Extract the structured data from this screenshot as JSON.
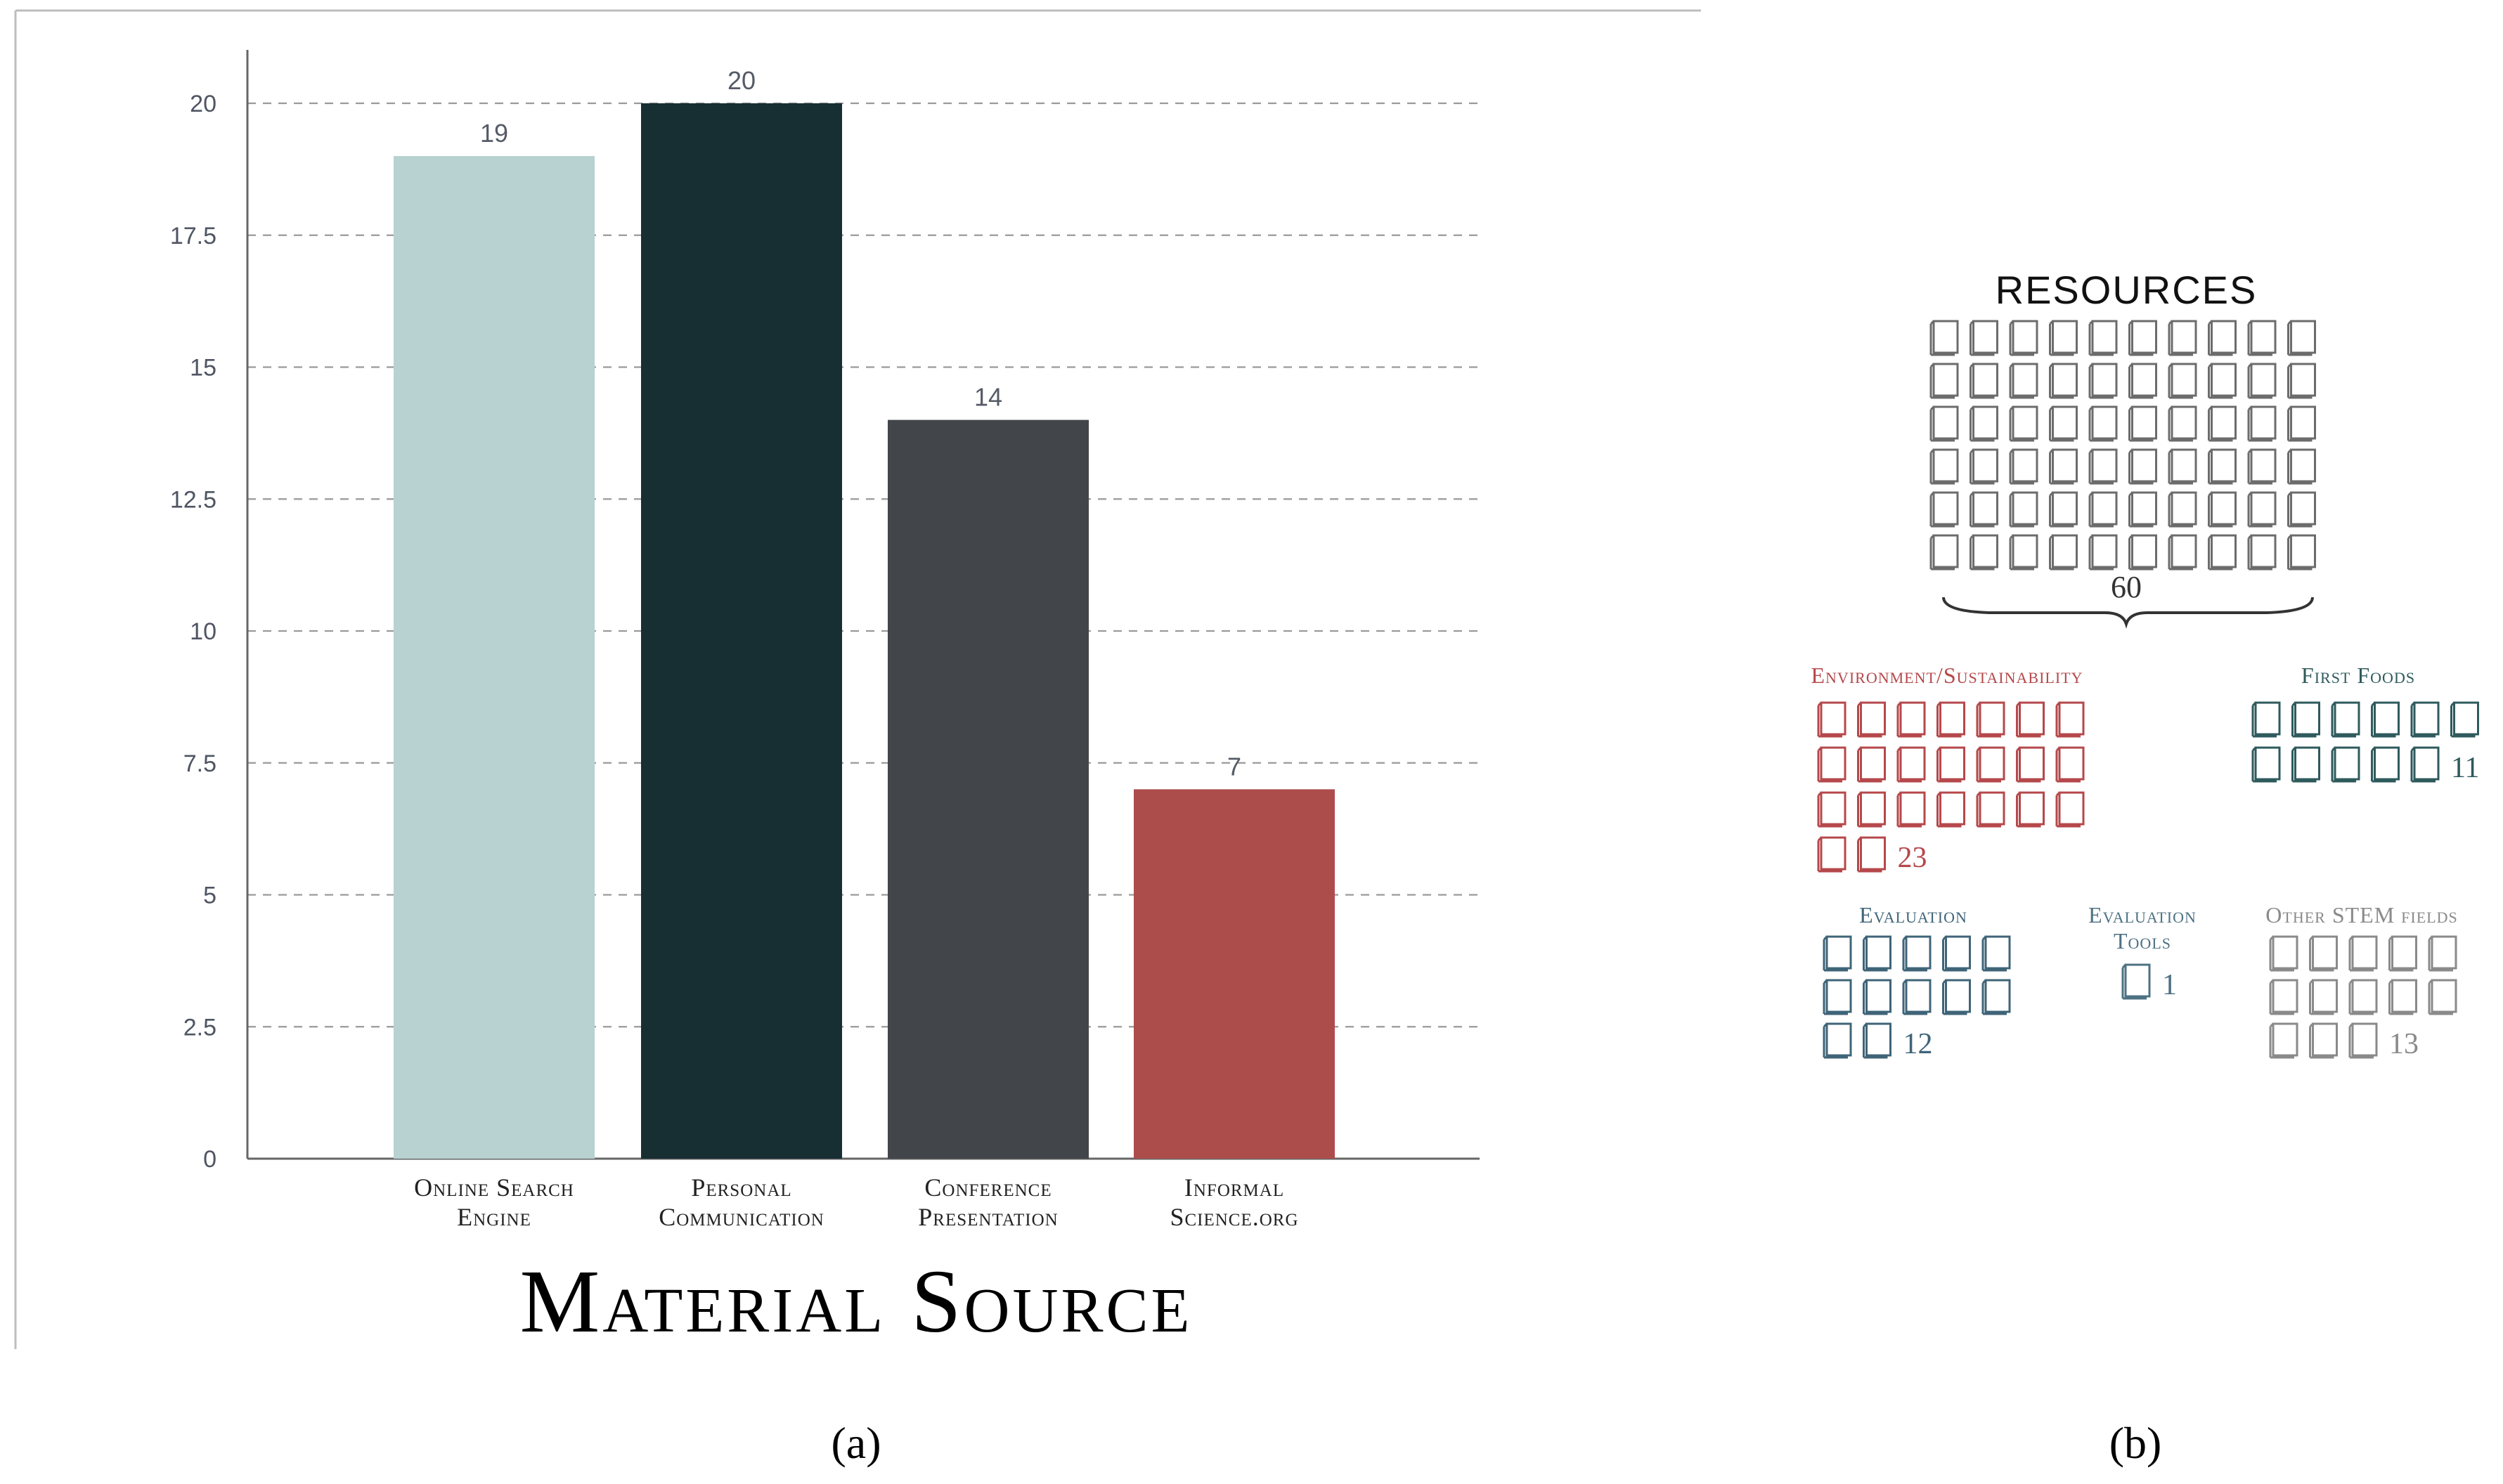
{
  "panel_a_label": "(a)",
  "panel_b_label": "(b)",
  "chart_data": [
    {
      "type": "bar",
      "xlabel": "Material Source",
      "ylabel": "",
      "categories": [
        [
          "Online Search",
          "Engine"
        ],
        [
          "Personal",
          "Communication"
        ],
        [
          "Conference",
          "Presentation"
        ],
        [
          "Informal",
          "Science.org"
        ]
      ],
      "values": [
        19,
        20,
        14,
        7
      ],
      "data_labels": [
        "19",
        "20",
        "14",
        "7"
      ],
      "colors": [
        "#b8d1d1",
        "#172e33",
        "#424549",
        "#ad4d4b"
      ],
      "ylim": [
        0,
        21
      ],
      "yticks": [
        0,
        2.5,
        5,
        7.5,
        10,
        12.5,
        15,
        17.5,
        20
      ],
      "ytick_labels": [
        "0",
        "2.5",
        "5",
        "7.5",
        "10",
        "12.5",
        "15",
        "17.5",
        "20"
      ],
      "grid": true
    },
    {
      "type": "pictogram",
      "icon": "book-icon",
      "title": "RESOURCES",
      "total": 60,
      "total_label": "60",
      "groups": [
        {
          "label": "Environment/Sustainability",
          "count": 23,
          "count_label": "23",
          "color": "#b5484b"
        },
        {
          "label": "First Foods",
          "count": 11,
          "count_label": "11",
          "color": "#2e5a5c"
        },
        {
          "label": "Evaluation",
          "count": 12,
          "count_label": "12",
          "color": "#3f6478"
        },
        {
          "label": [
            "Evaluation",
            "Tools"
          ],
          "count": 1,
          "count_label": "1",
          "color": "#4d7183"
        },
        {
          "label": "Other STEM fields",
          "count": 13,
          "count_label": "13",
          "color": "#8a8a8a"
        }
      ],
      "total_color": "#6c6c6c"
    }
  ]
}
